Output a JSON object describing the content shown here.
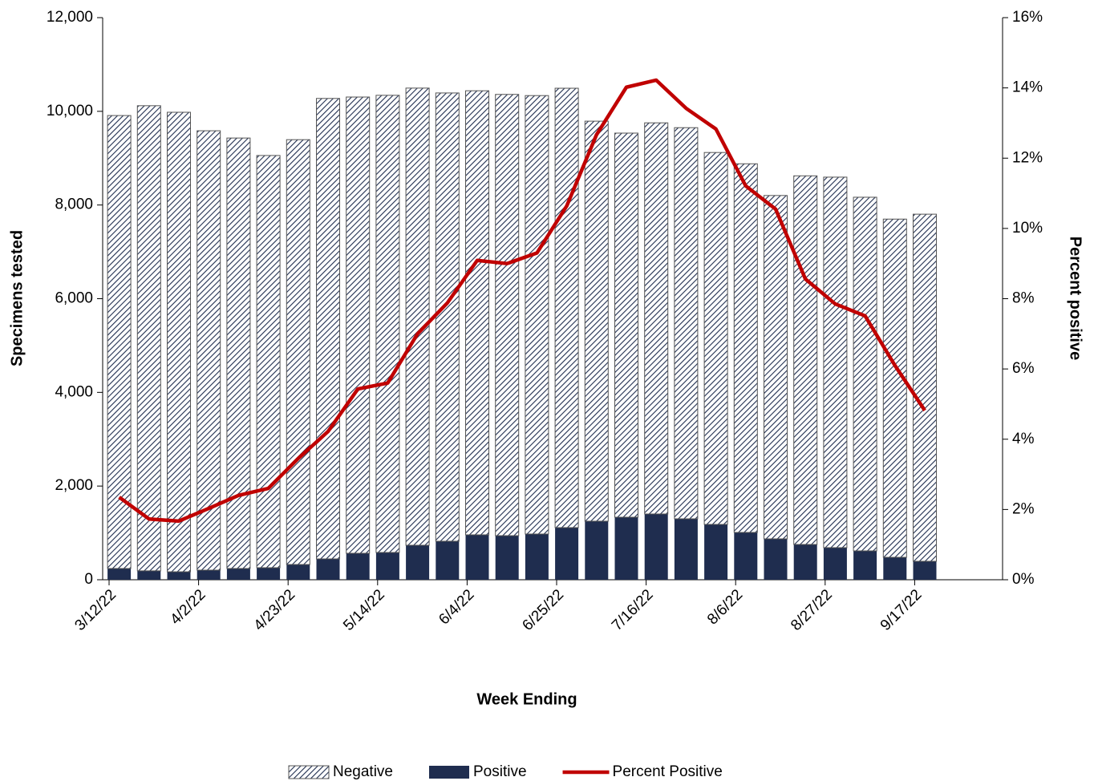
{
  "chart_data": {
    "type": "bar",
    "x_label": "Week Ending",
    "y_label": "Specimens tested",
    "y2_label": "Percent positive",
    "categories": [
      "3/12/22",
      null,
      null,
      "4/2/22",
      null,
      null,
      "4/23/22",
      null,
      null,
      "5/14/22",
      null,
      null,
      "6/4/22",
      null,
      null,
      "6/25/22",
      null,
      null,
      "7/16/22",
      null,
      null,
      "8/6/22",
      null,
      null,
      "8/27/22",
      null,
      null,
      "9/17/22"
    ],
    "series": [
      {
        "name": "Negative",
        "color": "#1f2d4f",
        "pattern": "hatch",
        "values": [
          9670,
          9930,
          9810,
          9380,
          9190,
          8800,
          9070,
          9830,
          9740,
          9760,
          9760,
          9570,
          9480,
          9420,
          9360,
          9380,
          8540,
          8200,
          8350,
          8350,
          7940,
          7870,
          7330,
          7870,
          7910,
          7550,
          7220,
          7410
        ]
      },
      {
        "name": "Positive",
        "color": "#1f2d4f",
        "values": [
          240,
          190,
          170,
          205,
          240,
          257,
          325,
          445,
          565,
          582,
          736,
          822,
          959,
          941,
          976,
          1113,
          1250,
          1335,
          1404,
          1301,
          1181,
          1010,
          873,
          753,
          685,
          616,
          479,
          394
        ]
      },
      {
        "name": "Percent Positive",
        "color": "#c00000",
        "type": "line",
        "axis": "y2",
        "values": [
          2.35,
          1.73,
          1.67,
          2.03,
          2.4,
          2.6,
          3.45,
          4.22,
          5.43,
          5.6,
          7.0,
          7.88,
          9.09,
          9.0,
          9.3,
          10.64,
          12.67,
          14.02,
          14.22,
          13.42,
          12.83,
          11.21,
          10.55,
          8.56,
          7.85,
          7.51,
          6.1,
          4.82
        ]
      }
    ],
    "ylim": [
      0,
      12000
    ],
    "yticks": [
      0,
      {
        "value": 2000,
        "label": "2,000"
      },
      {
        "value": 4000,
        "label": "4,000"
      },
      {
        "value": 6000,
        "label": "6,000"
      },
      {
        "value": 8000,
        "label": "8,000"
      },
      {
        "value": 10000,
        "label": "10,000"
      },
      {
        "value": 12000,
        "label": "12,000"
      }
    ],
    "y2lim": [
      0,
      16
    ],
    "y2ticks": [
      {
        "value": 0,
        "label": "0%"
      },
      {
        "value": 2,
        "label": "2%"
      },
      {
        "value": 4,
        "label": "4%"
      },
      {
        "value": 6,
        "label": "6%"
      },
      {
        "value": 8,
        "label": "8%"
      },
      {
        "value": 10,
        "label": "10%"
      },
      {
        "value": 12,
        "label": "12%"
      },
      {
        "value": 14,
        "label": "14%"
      },
      {
        "value": 16,
        "label": "16%"
      }
    ],
    "legend": "bottom"
  }
}
